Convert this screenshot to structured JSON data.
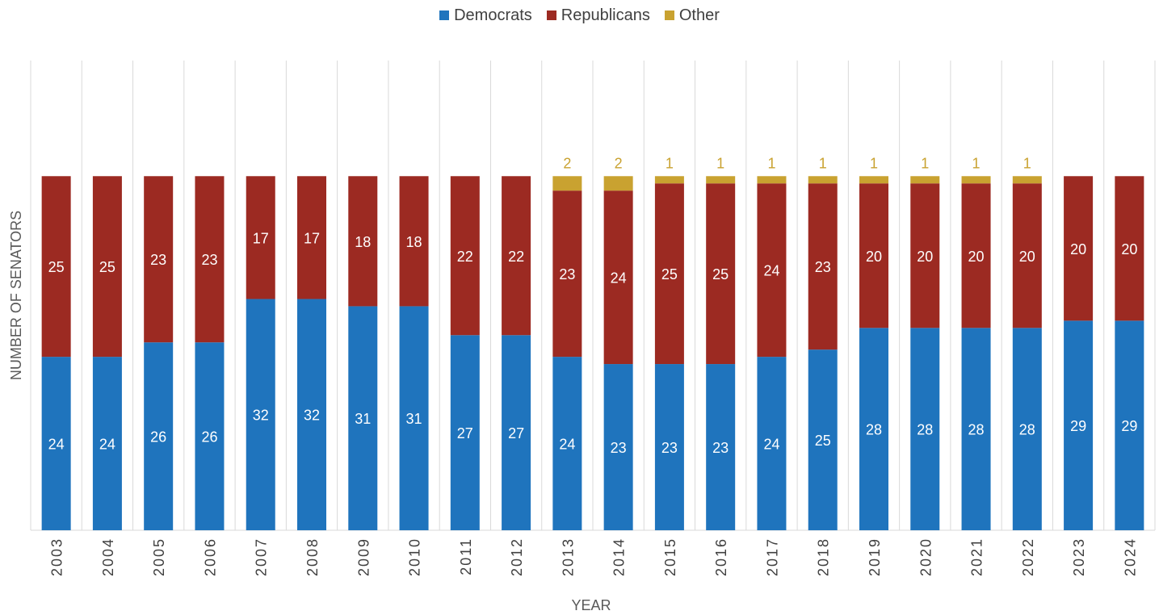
{
  "chart_data": {
    "type": "bar",
    "stacked": true,
    "xlabel": "YEAR",
    "ylabel": "NUMBER OF SENATORS",
    "ylim": [
      0,
      65
    ],
    "legend_position": "top-center",
    "categories": [
      "2003",
      "2004",
      "2005",
      "2006",
      "2007",
      "2008",
      "2009",
      "2010",
      "2011",
      "2012",
      "2013",
      "2014",
      "2015",
      "2016",
      "2017",
      "2018",
      "2019",
      "2020",
      "2021",
      "2022",
      "2023",
      "2024"
    ],
    "series": [
      {
        "name": "Democrats",
        "color": "#1f74bd",
        "label_color": "#ffffff",
        "values": [
          24,
          24,
          26,
          26,
          32,
          32,
          31,
          31,
          27,
          27,
          24,
          23,
          23,
          23,
          24,
          25,
          28,
          28,
          28,
          28,
          29,
          29
        ]
      },
      {
        "name": "Republicans",
        "color": "#9c2a22",
        "label_color": "#ffffff",
        "values": [
          25,
          25,
          23,
          23,
          17,
          17,
          18,
          18,
          22,
          22,
          23,
          24,
          25,
          25,
          24,
          23,
          20,
          20,
          20,
          20,
          20,
          20
        ]
      },
      {
        "name": "Other",
        "color": "#c9a230",
        "label_color": "#c9a230",
        "values": [
          0,
          0,
          0,
          0,
          0,
          0,
          0,
          0,
          0,
          0,
          2,
          2,
          1,
          1,
          1,
          1,
          1,
          1,
          1,
          1,
          0,
          0
        ]
      }
    ]
  }
}
